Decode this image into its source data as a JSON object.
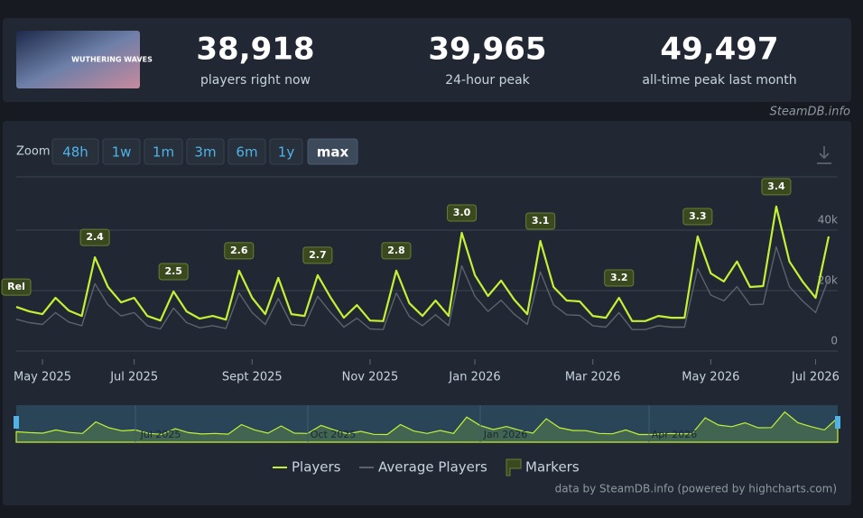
{
  "header": {
    "game_logo": "WUTHERING WAVES",
    "stats": [
      {
        "value": "38,918",
        "label": "players right now"
      },
      {
        "value": "39,965",
        "label": "24-hour peak"
      },
      {
        "value": "49,497",
        "label": "all-time peak last month"
      }
    ],
    "source": "SteamDB.info"
  },
  "zoom": {
    "label": "Zoom",
    "buttons": [
      "48h",
      "1w",
      "1m",
      "3m",
      "6m",
      "1y",
      "max"
    ],
    "active": "max"
  },
  "chart_data": {
    "type": "line",
    "categories": [
      null,
      null,
      "May 2025",
      null,
      null,
      null,
      null,
      null,
      null,
      "Jul 2025",
      null,
      null,
      null,
      null,
      null,
      null,
      null,
      null,
      "Sept 2025",
      null,
      null,
      null,
      null,
      null,
      null,
      null,
      null,
      "Nov 2025",
      null,
      null,
      null,
      null,
      null,
      null,
      null,
      "Jan 2026",
      null,
      null,
      null,
      null,
      null,
      null,
      null,
      null,
      "Mar 2026",
      null,
      null,
      null,
      null,
      null,
      null,
      null,
      null,
      "May 2026",
      null,
      null,
      null,
      null,
      null,
      null,
      null,
      "Jul 2026",
      null
    ],
    "series": [
      {
        "name": "Players",
        "color": "#c4f135",
        "values": [
          14600,
          13100,
          12200,
          17600,
          13400,
          11600,
          31000,
          21200,
          16100,
          17600,
          11600,
          10100,
          19700,
          13100,
          10700,
          11600,
          10400,
          26600,
          17600,
          12200,
          24200,
          12200,
          11600,
          25100,
          17600,
          11000,
          15200,
          10100,
          9900,
          26600,
          15800,
          11600,
          16700,
          11600,
          39100,
          25100,
          18200,
          23300,
          17000,
          12200,
          36400,
          21200,
          16700,
          16400,
          11600,
          11000,
          17600,
          9900,
          9900,
          11600,
          11000,
          11000,
          37900,
          25700,
          23000,
          29600,
          21200,
          21500,
          47800,
          29600,
          23000,
          17600,
          37900
        ]
      },
      {
        "name": "Average Players",
        "color": "#5b636b",
        "values": [
          10500,
          9400,
          8800,
          12700,
          9600,
          8400,
          22300,
          15300,
          11600,
          12700,
          8400,
          7300,
          14200,
          9400,
          7700,
          8400,
          7500,
          19200,
          12700,
          8800,
          17400,
          8800,
          8400,
          18100,
          12700,
          7900,
          10900,
          7300,
          7100,
          19200,
          11400,
          8400,
          12000,
          8400,
          28200,
          18100,
          13100,
          16800,
          12200,
          8800,
          26200,
          15300,
          12000,
          11800,
          8400,
          7900,
          12700,
          7100,
          7100,
          8400,
          7900,
          7900,
          27300,
          18500,
          16600,
          21300,
          15300,
          15500,
          34400,
          21300,
          16600,
          12700,
          24000
        ]
      }
    ],
    "markers": [
      "Rel",
      null,
      null,
      null,
      null,
      null,
      "2.4",
      null,
      null,
      null,
      null,
      null,
      "2.5",
      null,
      null,
      null,
      null,
      "2.6",
      null,
      null,
      null,
      null,
      null,
      "2.7",
      null,
      null,
      null,
      null,
      null,
      "2.8",
      null,
      null,
      null,
      null,
      "3.0",
      null,
      null,
      null,
      null,
      null,
      "3.1",
      null,
      null,
      null,
      null,
      null,
      "3.2",
      null,
      null,
      null,
      null,
      null,
      "3.3",
      null,
      null,
      null,
      null,
      null,
      "3.4",
      null,
      null,
      null,
      null
    ],
    "marker_legend": "Markers",
    "ylim": [
      0,
      57600
    ],
    "yticks": [
      0,
      {
        "value": 20000,
        "label": "20k"
      },
      {
        "value": 40000,
        "label": "40k"
      }
    ],
    "grid": true
  },
  "navigator": {
    "labels": [
      "Jul 2025",
      "Oct 2025",
      "Jan 2026",
      "Apr 2026"
    ]
  },
  "credits": "data by SteamDB.info (powered by highcharts.com)"
}
